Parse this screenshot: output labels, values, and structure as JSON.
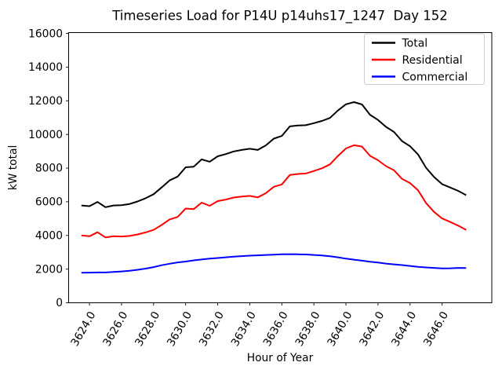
{
  "title": "Timeseries Load for P14U p14uhs17_1247  Day 152",
  "chart_data": {
    "type": "line",
    "title": "Timeseries Load for P14U p14uhs17_1247  Day 152",
    "xlabel": "Hour of Year",
    "ylabel": "kW total",
    "grid": false,
    "legend_position": "upper right",
    "xlim": [
      3622.7,
      3649.1
    ],
    "ylim": [
      0,
      16050
    ],
    "x_tick_values": [
      3624,
      3626,
      3628,
      3630,
      3632,
      3634,
      3636,
      3638,
      3640,
      3642,
      3644,
      3646
    ],
    "x_tick_labels": [
      "3624.0",
      "3626.0",
      "3628.0",
      "3630.0",
      "3632.0",
      "3634.0",
      "3636.0",
      "3638.0",
      "3640.0",
      "3642.0",
      "3644.0",
      "3646.0"
    ],
    "y_tick_values": [
      0,
      2000,
      4000,
      6000,
      8000,
      10000,
      12000,
      14000,
      16000
    ],
    "y_tick_labels": [
      "0",
      "2000",
      "4000",
      "6000",
      "8000",
      "10000",
      "12000",
      "14000",
      "16000"
    ],
    "x": [
      3623.5,
      3624.0,
      3624.5,
      3625.0,
      3625.5,
      3626.0,
      3626.5,
      3627.0,
      3627.5,
      3628.0,
      3628.5,
      3629.0,
      3629.5,
      3630.0,
      3630.5,
      3631.0,
      3631.5,
      3632.0,
      3632.5,
      3633.0,
      3633.5,
      3634.0,
      3634.5,
      3635.0,
      3635.5,
      3636.0,
      3636.5,
      3637.0,
      3637.5,
      3638.0,
      3638.5,
      3639.0,
      3639.5,
      3640.0,
      3640.5,
      3641.0,
      3641.5,
      3642.0,
      3642.5,
      3643.0,
      3643.5,
      3644.0,
      3644.5,
      3645.0,
      3645.5,
      3646.0,
      3646.5,
      3647.0,
      3647.5
    ],
    "series": [
      {
        "name": "Total",
        "color": "#000000",
        "values": [
          5780,
          5740,
          5990,
          5680,
          5780,
          5800,
          5870,
          6020,
          6210,
          6450,
          6850,
          7270,
          7500,
          8050,
          8080,
          8520,
          8380,
          8700,
          8830,
          8990,
          9080,
          9150,
          9080,
          9350,
          9750,
          9910,
          10480,
          10530,
          10550,
          10670,
          10800,
          10980,
          11420,
          11790,
          11920,
          11780,
          11170,
          10860,
          10450,
          10150,
          9600,
          9300,
          8810,
          8020,
          7470,
          7050,
          6850,
          6650,
          6390
        ]
      },
      {
        "name": "Residential",
        "color": "#ff0000",
        "values": [
          4000,
          3950,
          4190,
          3880,
          3950,
          3940,
          3970,
          4060,
          4180,
          4330,
          4620,
          4950,
          5100,
          5600,
          5560,
          5950,
          5760,
          6040,
          6130,
          6250,
          6310,
          6350,
          6260,
          6510,
          6890,
          7030,
          7590,
          7650,
          7680,
          7830,
          7990,
          8220,
          8720,
          9170,
          9360,
          9280,
          8730,
          8470,
          8120,
          7870,
          7360,
          7110,
          6680,
          5920,
          5400,
          5010,
          4800,
          4580,
          4330
        ]
      },
      {
        "name": "Commercial",
        "color": "#0000ff",
        "values": [
          1780,
          1790,
          1800,
          1800,
          1830,
          1860,
          1900,
          1960,
          2030,
          2120,
          2230,
          2320,
          2400,
          2450,
          2520,
          2570,
          2620,
          2660,
          2700,
          2740,
          2770,
          2800,
          2820,
          2840,
          2860,
          2880,
          2890,
          2880,
          2870,
          2840,
          2810,
          2760,
          2700,
          2620,
          2560,
          2500,
          2440,
          2390,
          2330,
          2280,
          2240,
          2190,
          2130,
          2100,
          2070,
          2040,
          2050,
          2070,
          2060
        ]
      }
    ]
  }
}
